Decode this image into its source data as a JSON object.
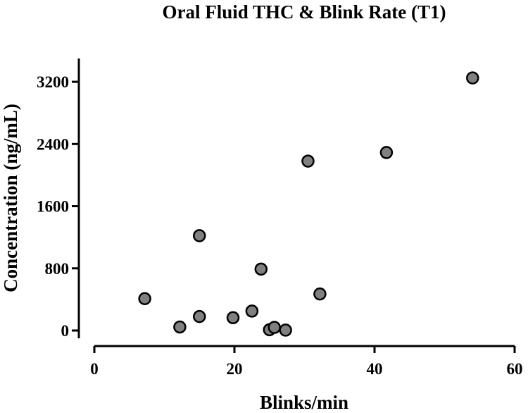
{
  "chart_data": {
    "type": "scatter",
    "title": "Oral Fluid THC & Blink Rate (T1)",
    "xlabel": "Blinks/min",
    "ylabel": "Concentration (ng/mL)",
    "xlim": [
      0,
      60
    ],
    "ylim": [
      -100,
      3500
    ],
    "xticks": [
      0,
      20,
      40,
      60
    ],
    "yticks": [
      0,
      800,
      1600,
      2400,
      3200
    ],
    "grid": false,
    "marker_fill": "#808080",
    "marker_edge": "#000000",
    "points": [
      {
        "x": 7.2,
        "y": 410
      },
      {
        "x": 12.2,
        "y": 45
      },
      {
        "x": 15.0,
        "y": 180
      },
      {
        "x": 15.0,
        "y": 1220
      },
      {
        "x": 19.8,
        "y": 165
      },
      {
        "x": 22.5,
        "y": 250
      },
      {
        "x": 23.8,
        "y": 790
      },
      {
        "x": 25.0,
        "y": 10
      },
      {
        "x": 25.7,
        "y": 40
      },
      {
        "x": 27.3,
        "y": 5
      },
      {
        "x": 30.5,
        "y": 2180
      },
      {
        "x": 32.2,
        "y": 470
      },
      {
        "x": 41.7,
        "y": 2290
      },
      {
        "x": 54.0,
        "y": 3250
      }
    ]
  }
}
